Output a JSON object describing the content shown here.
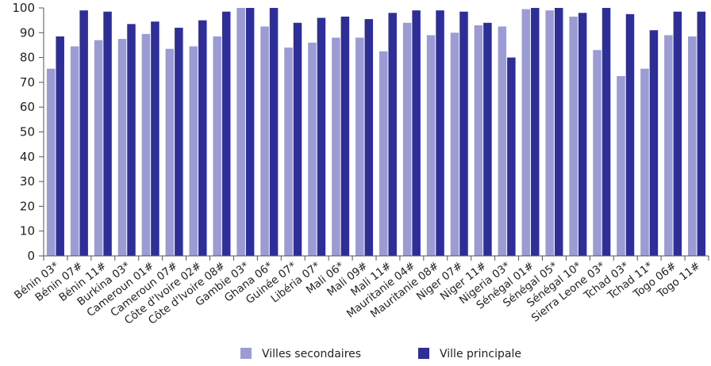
{
  "chart_data": {
    "type": "bar",
    "ylim": [
      0,
      100
    ],
    "yticks": [
      0,
      10,
      20,
      30,
      40,
      50,
      60,
      70,
      80,
      90,
      100
    ],
    "categories": [
      "Bénin 03*",
      "Bénin 07#",
      "Bénin 11#",
      "Burkina 03*",
      "Cameroun 01#",
      "Cameroun 07#",
      "Côte d'Ivoire 02#",
      "Côte d'Ivoire 08#",
      "Gambie 03*",
      "Ghana 06*",
      "Guinée 07*",
      "Libéria 07*",
      "Mali 06*",
      "Mali 09#",
      "Mali 11#",
      "Mauritanie 04#",
      "Mauritanie 08#",
      "Niger 07#",
      "Niger 11#",
      "Nigeria 03*",
      "Sénégal 01#",
      "Sénégal 05*",
      "Sénégal 10*",
      "Sierra Leone 03*",
      "Tchad 03*",
      "Tchad 11*",
      "Togo 06#",
      "Togo 11#"
    ],
    "series": [
      {
        "name": "Villes secondaires",
        "color": "#9b9bd6",
        "values": [
          75.5,
          84.5,
          87,
          87.5,
          89.5,
          83.5,
          84.5,
          88.5,
          100,
          92.5,
          84,
          86,
          88,
          88,
          82.5,
          94,
          89,
          90,
          93,
          92.5,
          99.5,
          99,
          96.5,
          83,
          72.5,
          75.5,
          89,
          88.5
        ]
      },
      {
        "name": "Ville principale",
        "color": "#2e2e99",
        "values": [
          88.5,
          99,
          98.5,
          93.5,
          94.5,
          92,
          95,
          98.5,
          100,
          100,
          94,
          96,
          96.5,
          95.5,
          98,
          99,
          99,
          98.5,
          94,
          80,
          100,
          100,
          98,
          100,
          97.5,
          91,
          98.5,
          98.5
        ]
      }
    ],
    "legend": "bottom-center",
    "grid": false
  }
}
